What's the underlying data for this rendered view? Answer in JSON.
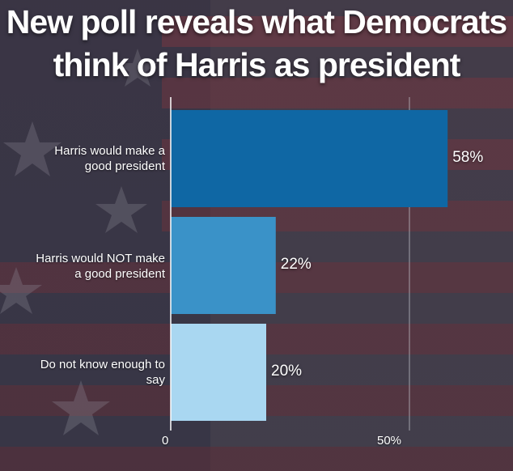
{
  "chart_data": {
    "type": "bar",
    "orientation": "horizontal",
    "title": "New poll reveals what Democrats think of Harris as president",
    "title_lines": [
      "New poll reveals what Democrats",
      "think of Harris as president"
    ],
    "categories": [
      "Harris would make a good president",
      "Harris would NOT make a good president",
      "Do not know enough to say"
    ],
    "category_lines": [
      [
        "Harris would make a",
        "good president"
      ],
      [
        "Harris would NOT make",
        "a good president"
      ],
      [
        "Do not know enough to",
        "say"
      ]
    ],
    "values": [
      58,
      22,
      20
    ],
    "value_labels": [
      "58%",
      "22%",
      "20%"
    ],
    "bar_colors": [
      "#0f67a4",
      "#3a92c8",
      "#a9d7f1"
    ],
    "xlim": [
      0,
      62
    ],
    "x_ticks": [
      0,
      50
    ],
    "x_tick_labels": [
      "0",
      "50%"
    ],
    "grid": true,
    "xlabel": "",
    "ylabel": ""
  }
}
